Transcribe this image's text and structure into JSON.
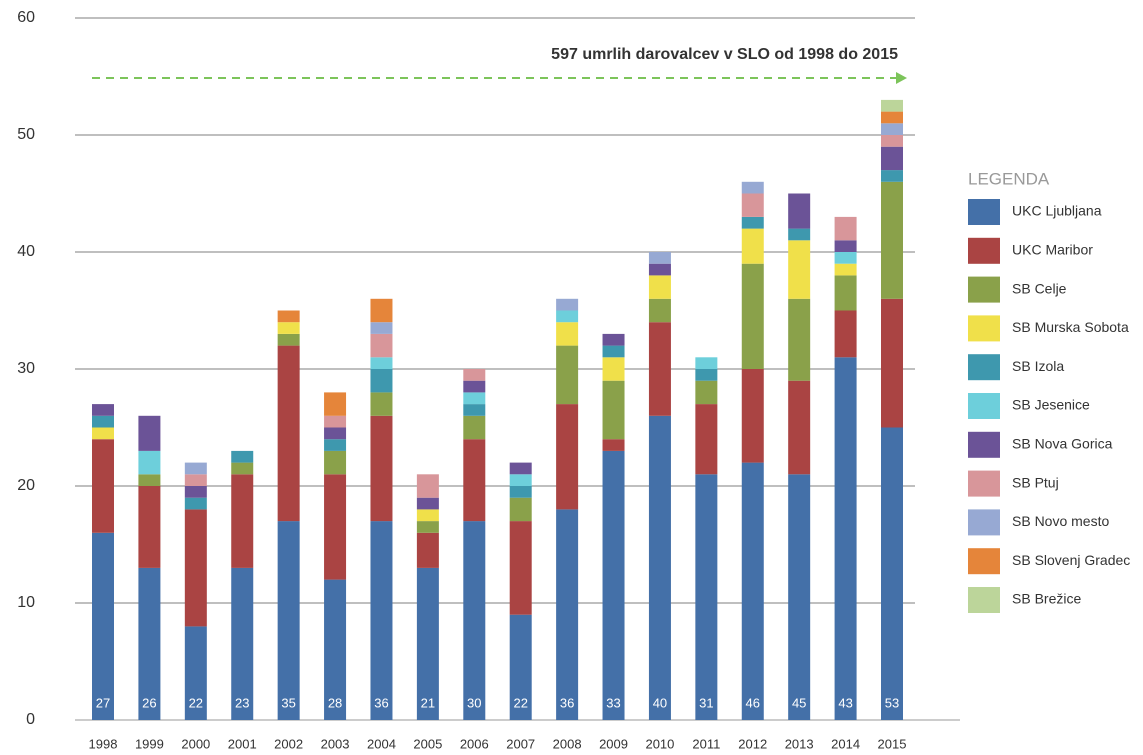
{
  "chart_data": {
    "type": "stacked_bar",
    "annotation": "597 umrlih darovalcev v SLO od 1998 do 2015",
    "legend_title": "LEGENDA",
    "legend_position": "right",
    "grid": true,
    "ylim": [
      0,
      60
    ],
    "yticks": [
      0,
      10,
      20,
      30,
      40,
      50,
      60
    ],
    "categories": [
      "1998",
      "1999",
      "2000",
      "2001",
      "2002",
      "2003",
      "2004",
      "2005",
      "2006",
      "2007",
      "2008",
      "2009",
      "2010",
      "2011",
      "2012",
      "2013",
      "2014",
      "2015"
    ],
    "totals": [
      27,
      26,
      22,
      23,
      35,
      28,
      36,
      21,
      30,
      22,
      36,
      33,
      40,
      31,
      46,
      45,
      43,
      53
    ],
    "series": [
      {
        "name": "UKC Ljubljana",
        "color": "#4470a8",
        "values": [
          16,
          13,
          8,
          13,
          17,
          12,
          17,
          13,
          17,
          9,
          18,
          23,
          26,
          21,
          22,
          21,
          31,
          25
        ]
      },
      {
        "name": "UKC Maribor",
        "color": "#aa4443",
        "values": [
          8,
          7,
          10,
          8,
          15,
          9,
          9,
          3,
          7,
          8,
          9,
          1,
          8,
          6,
          8,
          8,
          4,
          11
        ]
      },
      {
        "name": "SB Celje",
        "color": "#8aa14a",
        "values": [
          0,
          1,
          0,
          1,
          1,
          2,
          2,
          1,
          2,
          2,
          5,
          5,
          2,
          2,
          9,
          7,
          3,
          10
        ]
      },
      {
        "name": "SB Murska Sobota",
        "color": "#f0e04a",
        "values": [
          1,
          0,
          0,
          0,
          1,
          0,
          0,
          1,
          0,
          0,
          2,
          2,
          2,
          0,
          3,
          5,
          1,
          0
        ]
      },
      {
        "name": "SB Izola",
        "color": "#3e98ae",
        "values": [
          1,
          0,
          1,
          1,
          0,
          1,
          2,
          0,
          1,
          1,
          0,
          1,
          0,
          1,
          1,
          1,
          0,
          1
        ]
      },
      {
        "name": "SB Jesenice",
        "color": "#6dcfdb",
        "values": [
          0,
          2,
          0,
          0,
          0,
          0,
          1,
          0,
          1,
          1,
          1,
          0,
          0,
          1,
          0,
          0,
          1,
          0
        ]
      },
      {
        "name": "SB Nova Gorica",
        "color": "#6b5397",
        "values": [
          1,
          3,
          1,
          0,
          0,
          1,
          0,
          1,
          1,
          1,
          0,
          1,
          1,
          0,
          0,
          3,
          1,
          2
        ]
      },
      {
        "name": "SB Ptuj",
        "color": "#d8969a",
        "values": [
          0,
          0,
          1,
          0,
          0,
          1,
          2,
          2,
          1,
          0,
          0,
          0,
          0,
          0,
          2,
          0,
          2,
          1
        ]
      },
      {
        "name": "SB Novo mesto",
        "color": "#97a9d3",
        "values": [
          0,
          0,
          1,
          0,
          0,
          0,
          1,
          0,
          0,
          0,
          1,
          0,
          1,
          0,
          1,
          0,
          0,
          1
        ]
      },
      {
        "name": "SB Slovenj Gradec",
        "color": "#e5853a",
        "values": [
          0,
          0,
          0,
          0,
          1,
          2,
          2,
          0,
          0,
          0,
          0,
          0,
          0,
          0,
          0,
          0,
          0,
          1
        ]
      },
      {
        "name": "SB Brežice",
        "color": "#bcd59a",
        "values": [
          0,
          0,
          0,
          0,
          0,
          0,
          0,
          0,
          0,
          0,
          0,
          0,
          0,
          0,
          0,
          0,
          0,
          1
        ]
      }
    ]
  }
}
